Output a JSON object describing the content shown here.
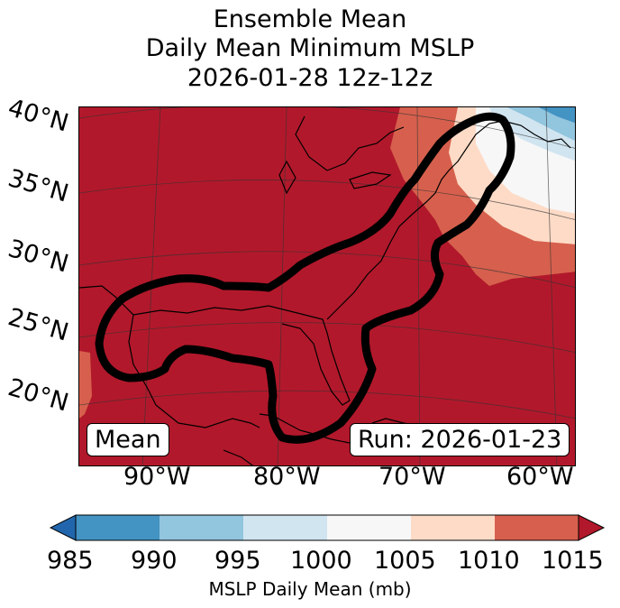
{
  "title": {
    "line1": "Ensemble Mean",
    "line2": "Daily Mean Minimum MSLP",
    "line3": "2026-01-28 12z-12z"
  },
  "axes": {
    "lat_labels": [
      "40°N",
      "35°N",
      "30°N",
      "25°N",
      "20°N"
    ],
    "lon_labels": [
      "90°W",
      "80°W",
      "70°W",
      "60°W"
    ]
  },
  "annotations": {
    "mean_label": "Mean",
    "run_label": "Run: 2026-01-23"
  },
  "colorbar": {
    "ticks": [
      "985",
      "990",
      "995",
      "1000",
      "1005",
      "1010",
      "1015"
    ],
    "title": "MSLP Daily Mean (mb)",
    "colors": [
      "#2166ac",
      "#4393c3",
      "#92c5de",
      "#d1e5f0",
      "#f7f7f7",
      "#fddbc7",
      "#d6604d",
      "#b2182b"
    ]
  }
}
